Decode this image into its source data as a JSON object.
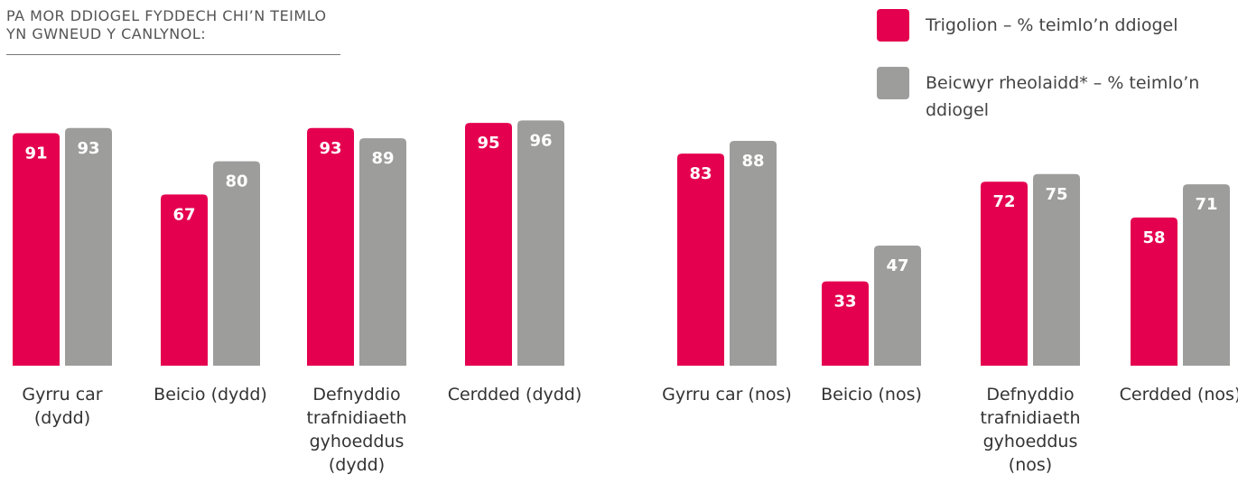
{
  "chart_data": {
    "type": "bar",
    "title": "PA MOR DDIOGEL FYDDECH CHI’N TEIMLO YN GWNEUD Y CANLYNOL:",
    "categories": [
      "Gyrru car (dydd)",
      "Beicio (dydd)",
      "Defnyddio trafnidiaeth gyhoeddus (dydd)",
      "Cerdded (dydd)",
      "Gyrru car (nos)",
      "Beicio (nos)",
      "Defnyddio trafnidiaeth gyhoeddus (nos)",
      "Cerdded (nos)"
    ],
    "series": [
      {
        "name": "Trigolion – % teimlo’n ddiogel",
        "color": "#e4004f",
        "values": [
          91,
          67,
          93,
          95,
          83,
          33,
          72,
          58
        ]
      },
      {
        "name": "Beicwyr rheolaidd* – % teimlo’n ddiogel",
        "color": "#9d9d9c",
        "values": [
          93,
          80,
          89,
          96,
          88,
          47,
          75,
          71
        ]
      }
    ],
    "ylim": [
      0,
      100
    ]
  }
}
